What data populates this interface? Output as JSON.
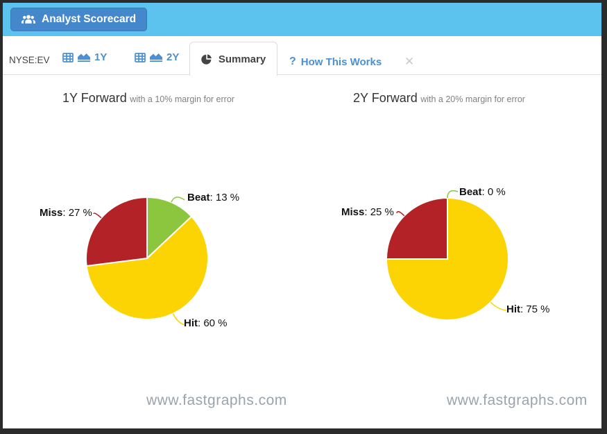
{
  "icons": {
    "close": "✕",
    "question": "?"
  },
  "header": {
    "app_button_label": "Analyst Scorecard"
  },
  "tabbar": {
    "ticker": "NYSE:EV",
    "tab_1y": "1Y",
    "tab_2y": "2Y",
    "tab_summary": "Summary",
    "tab_help": "How This Works"
  },
  "colors": {
    "header_blue": "#5bc3ee",
    "button_blue": "#4487cb",
    "tab_blue": "#4a90d2",
    "beat_green": "#8cc63e",
    "hit_yellow": "#fcd303",
    "miss_red": "#b22226"
  },
  "chart_data": [
    {
      "type": "pie",
      "title": "1Y Forward",
      "subtitle": "with a 10% margin for error",
      "unit": "%",
      "slices": [
        {
          "label": "Beat",
          "value": 13,
          "color": "#8cc63e"
        },
        {
          "label": "Hit",
          "value": 60,
          "color": "#fcd303"
        },
        {
          "label": "Miss",
          "value": 27,
          "color": "#b22226"
        }
      ],
      "watermark": "www.fastgraphs.com"
    },
    {
      "type": "pie",
      "title": "2Y Forward",
      "subtitle": "with a 20% margin for error",
      "unit": "%",
      "slices": [
        {
          "label": "Beat",
          "value": 0,
          "color": "#8cc63e"
        },
        {
          "label": "Hit",
          "value": 75,
          "color": "#fcd303"
        },
        {
          "label": "Miss",
          "value": 25,
          "color": "#b22226"
        }
      ],
      "watermark": "www.fastgraphs.com"
    }
  ]
}
